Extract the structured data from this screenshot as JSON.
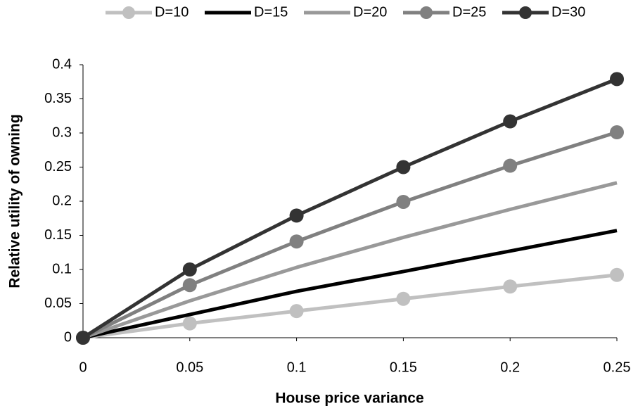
{
  "chart_data": {
    "type": "line",
    "x_label": "House price variance",
    "y_label": "Relative utility of owning",
    "x": [
      0,
      0.05,
      0.1,
      0.15,
      0.2,
      0.25
    ],
    "series": [
      {
        "name": "D=10",
        "color": "#c0c0c0",
        "markers": true,
        "values": [
          0,
          0.021,
          0.039,
          0.057,
          0.075,
          0.092
        ]
      },
      {
        "name": "D=15",
        "color": "#000000",
        "markers": false,
        "values": [
          0,
          0.034,
          0.068,
          0.097,
          0.127,
          0.157
        ]
      },
      {
        "name": "D=20",
        "color": "#999999",
        "markers": false,
        "values": [
          0,
          0.054,
          0.103,
          0.147,
          0.188,
          0.227
        ]
      },
      {
        "name": "D=25",
        "color": "#808080",
        "markers": true,
        "values": [
          0,
          0.077,
          0.141,
          0.199,
          0.252,
          0.301
        ]
      },
      {
        "name": "D=30",
        "color": "#333333",
        "markers": true,
        "values": [
          0,
          0.1,
          0.179,
          0.25,
          0.317,
          0.379
        ]
      }
    ],
    "xlim": [
      0,
      0.25
    ],
    "xticks": [
      0,
      0.05,
      0.1,
      0.15,
      0.2,
      0.25
    ],
    "ylim": [
      0,
      0.4
    ],
    "yticks": [
      0,
      0.05,
      0.1,
      0.15,
      0.2,
      0.25,
      0.3,
      0.35,
      0.4
    ],
    "grid": false,
    "legend": "top"
  }
}
